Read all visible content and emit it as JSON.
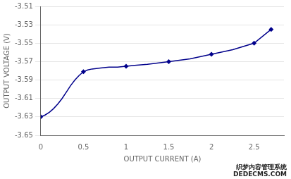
{
  "chart_data": {
    "type": "line",
    "x_label": "OUTPUT CURRENT (A)",
    "y_label": "OUTPUT VOLTAGE (V)",
    "annotations": [
      "织梦内容管理系统",
      "DEDECMS.COM"
    ],
    "series": [
      {
        "type": "line",
        "color": "#00008B",
        "x": [
          0,
          0.05,
          0.1,
          0.15,
          0.2,
          0.25,
          0.3,
          0.35,
          0.4,
          0.45,
          0.5,
          0.55,
          0.6,
          0.7,
          0.8,
          0.9,
          1.0,
          1.1,
          1.25,
          1.5,
          1.75,
          2.0,
          2.25,
          2.5,
          2.7
        ],
        "values": [
          -3.63,
          -3.628,
          -3.625,
          -3.621,
          -3.616,
          -3.61,
          -3.603,
          -3.596,
          -3.59,
          -3.585,
          -3.581,
          -3.579,
          -3.578,
          -3.577,
          -3.576,
          -3.576,
          -3.575,
          -3.574,
          -3.573,
          -3.57,
          -3.567,
          -3.562,
          -3.557,
          -3.55,
          -3.535
        ]
      },
      {
        "type": "scatter",
        "color": "#00008B",
        "marker": "diamond",
        "x": [
          0,
          0.5,
          1.0,
          1.5,
          2.0,
          2.5,
          2.7
        ],
        "values": [
          -3.63,
          -3.581,
          -3.575,
          -3.57,
          -3.562,
          -3.55,
          -3.535
        ]
      }
    ],
    "xlim": [
      0,
      2.85
    ],
    "ylim": [
      -3.65,
      -3.51
    ],
    "xticks": [
      0,
      0.5,
      1,
      1.5,
      2,
      2.5
    ],
    "yticks": [
      -3.65,
      -3.63,
      -3.61,
      -3.59,
      -3.57,
      -3.55,
      -3.53,
      -3.51
    ],
    "grid": "y"
  }
}
